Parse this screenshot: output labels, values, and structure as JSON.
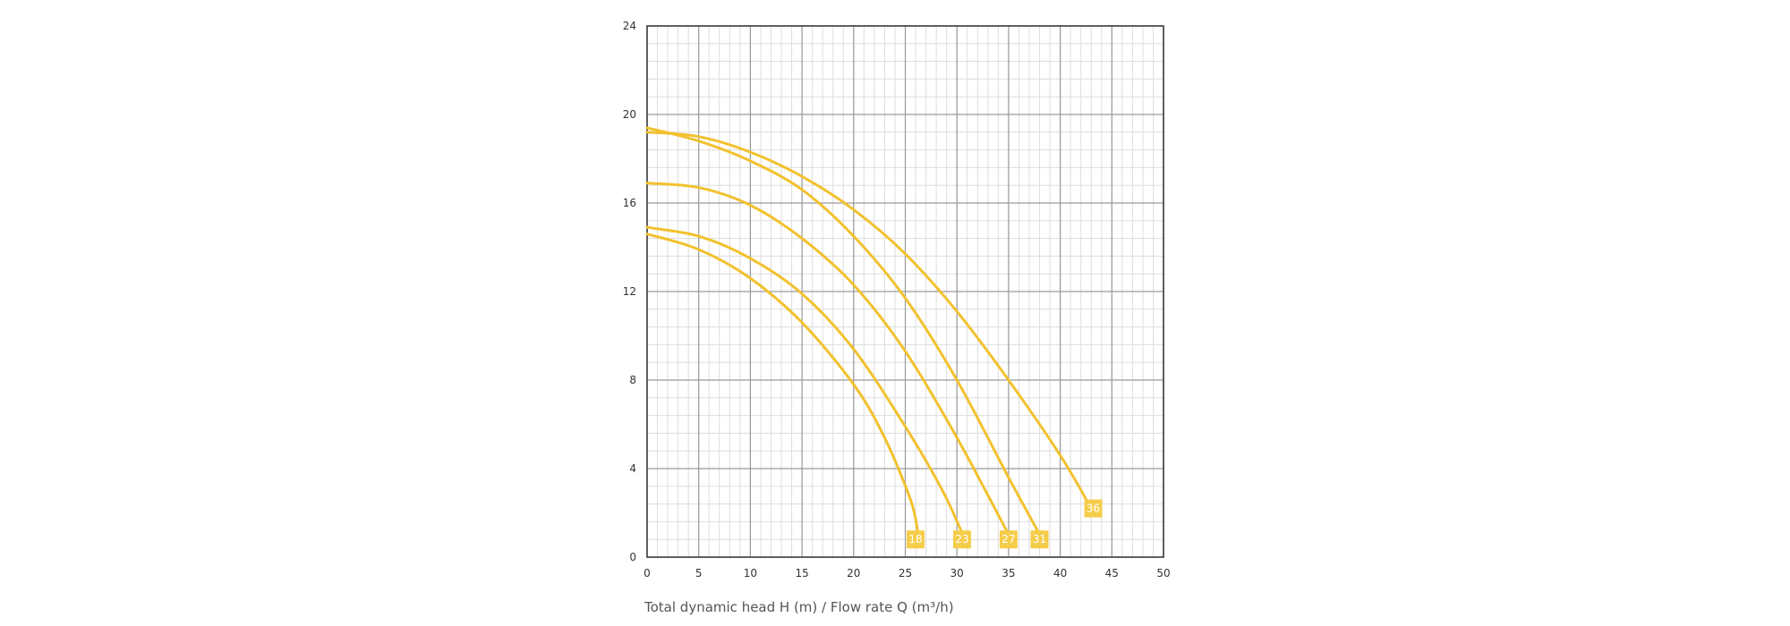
{
  "chart_data": {
    "type": "line",
    "title": "",
    "xlabel": "Total dynamic head H (m) / Flow rate Q (m³/h)",
    "ylabel": "",
    "xlim": [
      0,
      50
    ],
    "ylim": [
      0,
      24
    ],
    "x_ticks": [
      0,
      5,
      10,
      15,
      20,
      25,
      30,
      35,
      40,
      45,
      50
    ],
    "y_ticks": [
      0,
      4,
      8,
      12,
      16,
      20,
      24
    ],
    "grid": true,
    "colors": {
      "curve": "#f2c12e",
      "label_box": "#f5cd4a",
      "major_grid": "#9a9a9a",
      "minor_grid": "#dddddd",
      "axis": "#333333"
    },
    "series": [
      {
        "name": "18",
        "label_at": [
          26,
          0.8
        ],
        "points": [
          [
            0,
            14.6
          ],
          [
            5,
            13.9
          ],
          [
            10,
            12.6
          ],
          [
            15,
            10.6
          ],
          [
            20,
            7.8
          ],
          [
            23,
            5.4
          ],
          [
            25.5,
            2.6
          ],
          [
            26.2,
            1.2
          ]
        ]
      },
      {
        "name": "23",
        "label_at": [
          30.5,
          0.8
        ],
        "points": [
          [
            0,
            14.9
          ],
          [
            5,
            14.5
          ],
          [
            10,
            13.5
          ],
          [
            15,
            11.9
          ],
          [
            20,
            9.4
          ],
          [
            25,
            5.9
          ],
          [
            28.5,
            3.1
          ],
          [
            30.4,
            1.2
          ]
        ]
      },
      {
        "name": "27",
        "label_at": [
          35,
          0.8
        ],
        "points": [
          [
            0,
            16.9
          ],
          [
            5,
            16.7
          ],
          [
            10,
            15.9
          ],
          [
            15,
            14.4
          ],
          [
            20,
            12.3
          ],
          [
            25,
            9.3
          ],
          [
            30,
            5.4
          ],
          [
            34.8,
            1.2
          ]
        ]
      },
      {
        "name": "31",
        "label_at": [
          38,
          0.8
        ],
        "points": [
          [
            0,
            19.4
          ],
          [
            5,
            18.8
          ],
          [
            10,
            17.9
          ],
          [
            15,
            16.6
          ],
          [
            20,
            14.5
          ],
          [
            25,
            11.7
          ],
          [
            30,
            8.0
          ],
          [
            35,
            3.6
          ],
          [
            37.8,
            1.2
          ]
        ]
      },
      {
        "name": "36",
        "label_at": [
          43.2,
          2.2
        ],
        "points": [
          [
            0,
            19.2
          ],
          [
            5,
            19.0
          ],
          [
            10,
            18.3
          ],
          [
            15,
            17.2
          ],
          [
            20,
            15.7
          ],
          [
            25,
            13.7
          ],
          [
            30,
            11.1
          ],
          [
            35,
            8.0
          ],
          [
            40,
            4.6
          ],
          [
            43,
            2.2
          ]
        ]
      }
    ]
  }
}
